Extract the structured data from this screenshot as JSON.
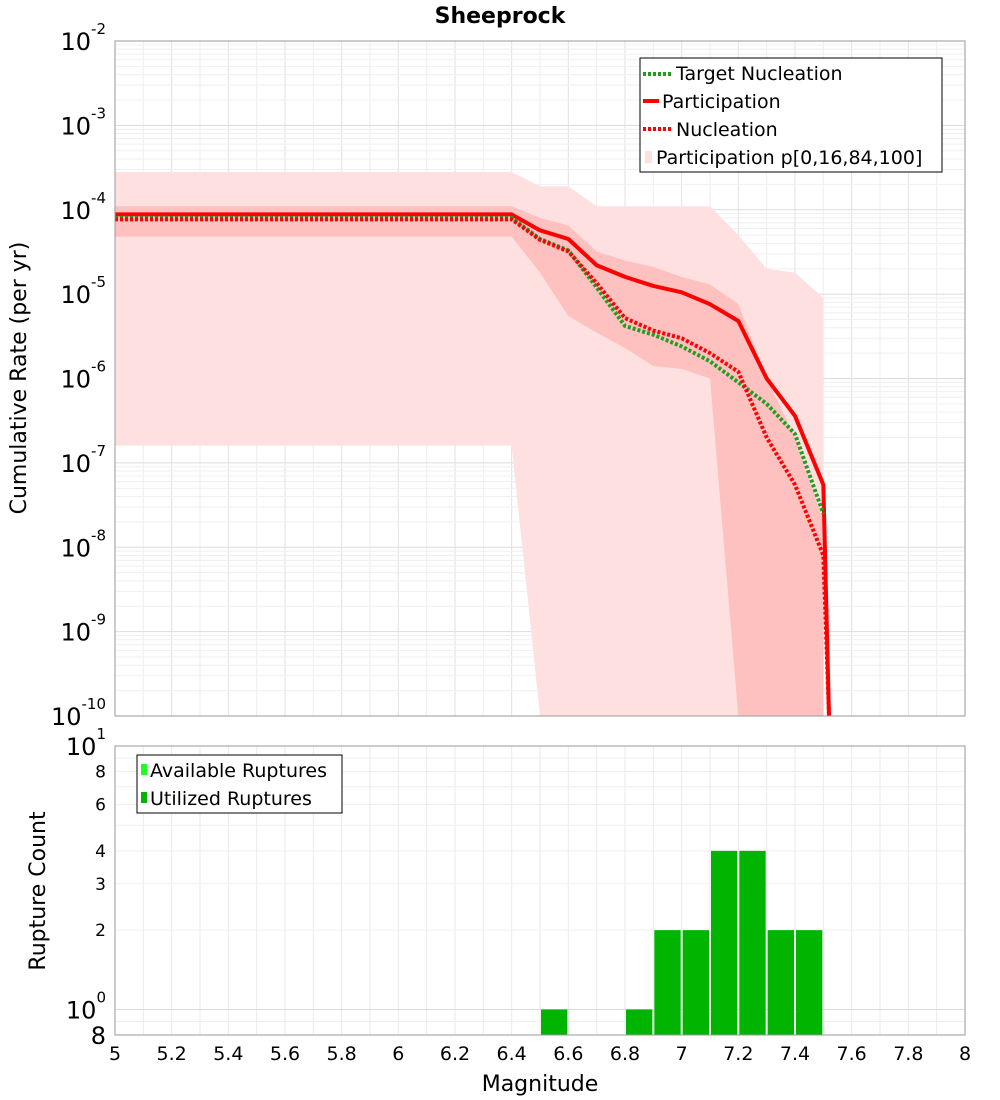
{
  "chart_data": [
    {
      "type": "line",
      "title": "Sheeprock",
      "xlabel": "",
      "ylabel": "Cumulative Rate (per yr)",
      "y_scale": "log",
      "xlim": [
        5,
        8
      ],
      "ylim": [
        1e-10,
        0.01
      ],
      "grid": true,
      "legend_position": "top-right",
      "y_ticks": [
        {
          "base": "10",
          "exp": "-2"
        },
        {
          "base": "10",
          "exp": "-3"
        },
        {
          "base": "10",
          "exp": "-4"
        },
        {
          "base": "10",
          "exp": "-5"
        },
        {
          "base": "10",
          "exp": "-6"
        },
        {
          "base": "10",
          "exp": "-7"
        },
        {
          "base": "10",
          "exp": "-8"
        },
        {
          "base": "10",
          "exp": "-9"
        },
        {
          "base": "10",
          "exp": "-10"
        }
      ],
      "series": [
        {
          "name": "Target Nucleation",
          "style": "dotted",
          "color": "#1e9e1e",
          "x": [
            5.0,
            6.4,
            6.5,
            6.6,
            6.7,
            6.8,
            6.9,
            7.0,
            7.1,
            7.2,
            7.3,
            7.4,
            7.5
          ],
          "y": [
            8e-05,
            8e-05,
            4.5e-05,
            3.3e-05,
            1.2e-05,
            4.2e-06,
            3.3e-06,
            2.4e-06,
            1.6e-06,
            9e-07,
            5e-07,
            2.2e-07,
            2.5e-08
          ]
        },
        {
          "name": "Participation",
          "style": "solid",
          "color": "#ff0000",
          "x": [
            5.0,
            6.4,
            6.5,
            6.6,
            6.7,
            6.8,
            6.9,
            7.0,
            7.1,
            7.2,
            7.3,
            7.4,
            7.5,
            7.52
          ],
          "y": [
            8.8e-05,
            8.8e-05,
            5.7e-05,
            4.5e-05,
            2.2e-05,
            1.6e-05,
            1.25e-05,
            1.05e-05,
            7.6e-06,
            4.8e-06,
            1e-06,
            3.6e-07,
            5.5e-08,
            1e-10
          ]
        },
        {
          "name": "Nucleation",
          "style": "dotted",
          "color": "#ff0000",
          "x": [
            5.0,
            6.4,
            6.5,
            6.6,
            6.7,
            6.8,
            6.9,
            7.0,
            7.1,
            7.2,
            7.3,
            7.4,
            7.5,
            7.52
          ],
          "y": [
            7.7e-05,
            7.7e-05,
            4.4e-05,
            3.2e-05,
            1.35e-05,
            5.2e-06,
            3.7e-06,
            3e-06,
            2e-06,
            1.2e-06,
            2e-07,
            5.5e-08,
            8e-09,
            1e-10
          ]
        },
        {
          "name": "Participation p[0,16,84,100]",
          "style": "band",
          "color": "#ffc0c0",
          "x": [
            5.0,
            6.4,
            6.5,
            6.6,
            6.7,
            6.8,
            6.9,
            7.0,
            7.1,
            7.2,
            7.3,
            7.4,
            7.5
          ],
          "p0": [
            1.6e-07,
            1.6e-07,
            1e-10,
            1e-10,
            1e-10,
            1e-10,
            1e-10,
            1e-10,
            1e-10,
            1e-10,
            1e-10,
            1e-10,
            1e-10
          ],
          "p16": [
            4.8e-05,
            4.8e-05,
            1.8e-05,
            5.5e-06,
            3.5e-06,
            2.3e-06,
            1.4e-06,
            1.3e-06,
            1e-06,
            1e-10,
            1e-10,
            1e-10,
            1e-10
          ],
          "p84": [
            0.00011,
            0.00011,
            8e-05,
            6.5e-05,
            3.2e-05,
            2.5e-05,
            2.1e-05,
            1.6e-05,
            1.3e-05,
            7.6e-06,
            1e-06,
            2e-07,
            2e-08
          ],
          "p100": [
            0.00028,
            0.00028,
            0.00019,
            0.00019,
            0.00011,
            0.00011,
            0.00011,
            0.00011,
            0.00011,
            5e-05,
            2e-05,
            1.8e-05,
            9e-06
          ]
        }
      ]
    },
    {
      "type": "bar",
      "title": "",
      "xlabel": "Magnitude",
      "ylabel": "Rupture Count",
      "y_scale": "log",
      "xlim": [
        5,
        8
      ],
      "ylim": [
        0.8,
        10
      ],
      "grid": true,
      "legend_position": "top-left",
      "x_ticks": [
        "5",
        "5.2",
        "5.4",
        "5.6",
        "5.8",
        "6",
        "6.2",
        "6.4",
        "6.6",
        "6.8",
        "7",
        "7.2",
        "7.4",
        "7.6",
        "7.8",
        "8"
      ],
      "y_ticks": [
        {
          "value": 10,
          "label": "10",
          "exp": "1"
        },
        {
          "value": 8,
          "label": "8",
          "exp": ""
        },
        {
          "value": 6,
          "label": "6",
          "exp": ""
        },
        {
          "value": 4,
          "label": "4",
          "exp": ""
        },
        {
          "value": 3,
          "label": "3",
          "exp": ""
        },
        {
          "value": 2,
          "label": "2",
          "exp": ""
        },
        {
          "value": 1,
          "label": "10",
          "exp": "0"
        },
        {
          "value": 0.8,
          "label": "8",
          "exp": ""
        }
      ],
      "series": [
        {
          "name": "Available Ruptures",
          "color": "#22ff22",
          "x": [],
          "values": []
        },
        {
          "name": "Utilized Ruptures",
          "color": "#00b400",
          "x": [
            6.55,
            6.85,
            6.95,
            7.05,
            7.15,
            7.25,
            7.35,
            7.45
          ],
          "values": [
            1,
            1,
            2,
            2,
            4,
            4,
            2,
            2
          ]
        }
      ]
    }
  ]
}
